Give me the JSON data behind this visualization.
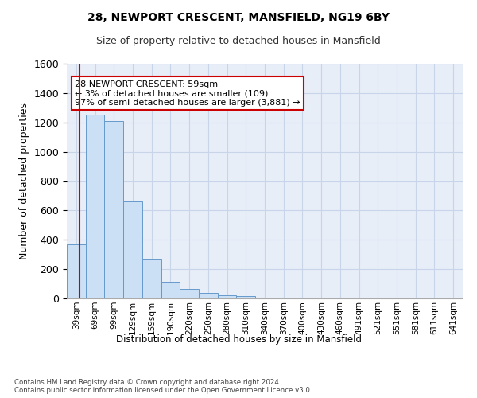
{
  "title_line1": "28, NEWPORT CRESCENT, MANSFIELD, NG19 6BY",
  "title_line2": "Size of property relative to detached houses in Mansfield",
  "xlabel": "Distribution of detached houses by size in Mansfield",
  "ylabel": "Number of detached properties",
  "footnote": "Contains HM Land Registry data © Crown copyright and database right 2024.\nContains public sector information licensed under the Open Government Licence v3.0.",
  "categories": [
    "39sqm",
    "69sqm",
    "99sqm",
    "129sqm",
    "159sqm",
    "190sqm",
    "220sqm",
    "250sqm",
    "280sqm",
    "310sqm",
    "340sqm",
    "370sqm",
    "400sqm",
    "430sqm",
    "460sqm",
    "491sqm",
    "521sqm",
    "551sqm",
    "581sqm",
    "611sqm",
    "641sqm"
  ],
  "values": [
    370,
    1255,
    1210,
    660,
    265,
    115,
    65,
    40,
    20,
    15,
    0,
    0,
    0,
    0,
    0,
    0,
    0,
    0,
    0,
    0,
    0
  ],
  "bar_color": "#cce0f5",
  "bar_edge_color": "#6699cc",
  "grid_color": "#c8d4e8",
  "bg_color": "#e8eef8",
  "annotation_text": "28 NEWPORT CRESCENT: 59sqm\n← 3% of detached houses are smaller (109)\n97% of semi-detached houses are larger (3,881) →",
  "annotation_box_color": "#ffffff",
  "annotation_box_edge": "#cc0000",
  "marker_line_color": "#cc0000",
  "ylim": [
    0,
    1600
  ],
  "yticks": [
    0,
    200,
    400,
    600,
    800,
    1000,
    1200,
    1400,
    1600
  ]
}
